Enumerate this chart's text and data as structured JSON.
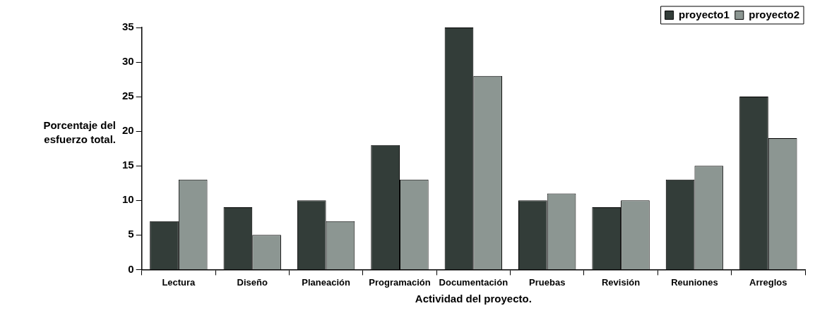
{
  "chart_data": {
    "type": "bar",
    "xlabel": "Actividad del proyecto.",
    "ylabel": "Porcentaje del esfuerzo total.",
    "categories": [
      "Lectura",
      "Diseño",
      "Planeación",
      "Programación",
      "Documentación",
      "Pruebas",
      "Revisión",
      "Reuniones",
      "Arreglos"
    ],
    "series": [
      {
        "name": "proyecto1",
        "color": "#333d39",
        "values": [
          7,
          9,
          10,
          18,
          35,
          10,
          9,
          13,
          25
        ]
      },
      {
        "name": "proyecto2",
        "color": "#8c9692",
        "values": [
          13,
          5,
          7,
          13,
          28,
          11,
          10,
          15,
          19
        ]
      }
    ],
    "ylim": [
      0,
      35
    ],
    "yticks": [
      0,
      5,
      10,
      15,
      20,
      25,
      30,
      35
    ],
    "grid": false,
    "legend": "top right"
  }
}
